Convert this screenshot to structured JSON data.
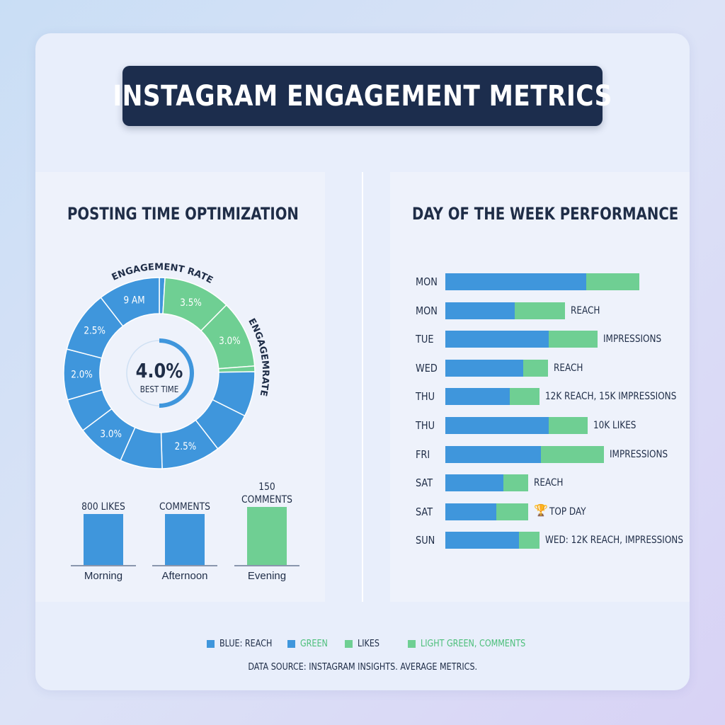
{
  "title": "INSTAGRAM ENGAGEMENT METRICS",
  "colors": {
    "blue": "#3f96dc",
    "green": "#6fcf93",
    "navy": "#1c2d4d",
    "ring_line": "#ffffff"
  },
  "left_panel": {
    "title": "POSTING TIME OPTIMIZATION",
    "donut_label_top": "ENGAGEMENT RATE",
    "donut_label_side": "ENGAGEMRATE",
    "center_value": "4.0%",
    "center_caption": "BEST TIME"
  },
  "right_panel": {
    "title": "DAY OF THE WEEK PERFORMANCE"
  },
  "legend": [
    {
      "label": "BLUE: REACH",
      "color": "#3f96dc",
      "text_color": "#1f2d47"
    },
    {
      "label": "GREEN",
      "color": "#3f96dc",
      "text_color": "#4cbf7a"
    },
    {
      "label": "LIKES",
      "color": "#6fcf93",
      "text_color": "#1f2d47"
    },
    {
      "label": "LIGHT GREEN, COMMENTS",
      "color": "#6fcf93",
      "text_color": "#4cbf7a"
    }
  ],
  "footnote": "DATA SOURCE: INSTAGRAM INSIGHTS. AVERAGE METRICS.",
  "trophy_icon": "trophy-icon",
  "chart_data": [
    {
      "type": "pie",
      "title": "POSTING TIME OPTIMIZATION",
      "subtitle": "ENGAGEMENT RATE",
      "slices": [
        {
          "label": "",
          "value": 1,
          "color": "#3f96dc"
        },
        {
          "label": "3.5%",
          "value": 12,
          "color": "#6fcf93"
        },
        {
          "label": "3.0%",
          "value": 12,
          "color": "#6fcf93"
        },
        {
          "label": "",
          "value": 1,
          "color": "#6fcf93"
        },
        {
          "label": "",
          "value": 8,
          "color": "#3f96dc"
        },
        {
          "label": "",
          "value": 7.5,
          "color": "#3f96dc"
        },
        {
          "label": "2.5%",
          "value": 10.5,
          "color": "#3f96dc"
        },
        {
          "label": "",
          "value": 7.5,
          "color": "#3f96dc"
        },
        {
          "label": "3.0%",
          "value": 8.5,
          "color": "#3f96dc"
        },
        {
          "label": "",
          "value": 6,
          "color": "#3f96dc"
        },
        {
          "label": "2.0%",
          "value": 9,
          "color": "#3f96dc"
        },
        {
          "label": "2.5%",
          "value": 11,
          "color": "#3f96dc"
        },
        {
          "label": "9 AM",
          "value": 11,
          "color": "#3f96dc"
        }
      ],
      "center_value": "4.0%",
      "center_caption": "BEST TIME"
    },
    {
      "type": "bar",
      "categories": [
        "Morning",
        "Afternoon",
        "Evening"
      ],
      "values": [
        0.72,
        0.72,
        0.82
      ],
      "top_labels": [
        "800 LIKES",
        "COMMENTS",
        "150\nCOMMENTS"
      ],
      "colors": [
        "#3f96dc",
        "#3f96dc",
        "#6fcf93"
      ]
    },
    {
      "type": "bar",
      "orientation": "horizontal",
      "title": "DAY OF THE WEEK PERFORMANCE",
      "categories": [
        "MON",
        "MON",
        "TUE",
        "WED",
        "THU",
        "THU",
        "FRI",
        "SAT",
        "SAT",
        "SUN"
      ],
      "series": [
        {
          "name": "REACH",
          "values": [
            199,
            98,
            146,
            110,
            91,
            146,
            135,
            82,
            72,
            104
          ]
        },
        {
          "name": "LIKES",
          "values": [
            75,
            71,
            69,
            35,
            42,
            55,
            89,
            35,
            45,
            29
          ]
        }
      ],
      "annotations": [
        "",
        "REACH",
        "IMPRESSIONS",
        "REACH",
        "12K REACH, 15K IMPRESSIONS",
        "10K LIKES",
        "IMPRESSIONS",
        "REACH",
        "TOP DAY",
        "WED: 12K REACH, IMPRESSIONS"
      ],
      "top_day_index": 8
    }
  ]
}
